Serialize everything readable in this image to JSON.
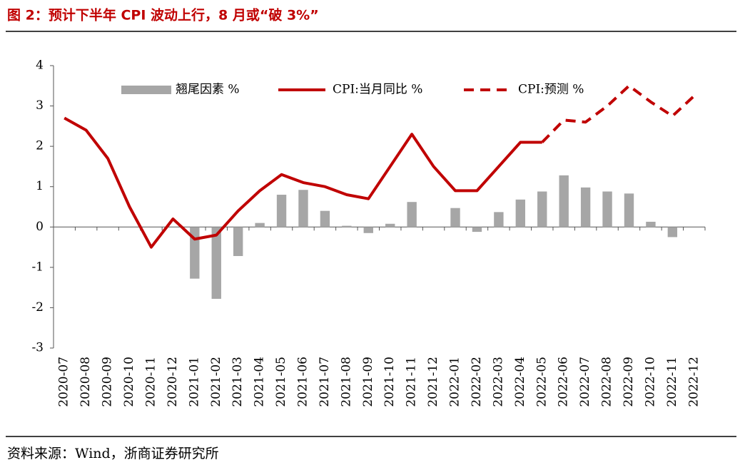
{
  "chart_data": {
    "type": "combo",
    "title": "图 2：预计下半年 CPI 波动上行，8 月或“破 3%”",
    "source": "资料来源：Wind，浙商证券研究所",
    "categories": [
      "2020-07",
      "2020-08",
      "2020-09",
      "2020-10",
      "2020-11",
      "2020-12",
      "2021-01",
      "2021-02",
      "2021-03",
      "2021-04",
      "2021-05",
      "2021-06",
      "2021-07",
      "2021-08",
      "2021-09",
      "2021-10",
      "2021-11",
      "2021-12",
      "2022-01",
      "2022-02",
      "2022-03",
      "2022-04",
      "2022-05",
      "2022-06",
      "2022-07",
      "2022-08",
      "2022-09",
      "2022-10",
      "2022-11",
      "2022-12"
    ],
    "series": [
      {
        "name": "翘尾因素 %",
        "type": "bar",
        "color": "#a6a6a6",
        "values": [
          null,
          null,
          null,
          null,
          null,
          null,
          -1.28,
          -1.78,
          -0.72,
          0.1,
          0.8,
          0.92,
          0.4,
          0.03,
          -0.15,
          0.08,
          0.62,
          null,
          0.47,
          -0.12,
          0.37,
          0.68,
          0.88,
          1.28,
          0.98,
          0.88,
          0.83,
          0.13,
          -0.25,
          null
        ]
      },
      {
        "name": "CPI:当月同比 %",
        "type": "line",
        "dashed": false,
        "color": "#c00000",
        "values": [
          2.7,
          2.4,
          1.7,
          0.5,
          -0.5,
          0.2,
          -0.3,
          -0.2,
          0.4,
          0.9,
          1.3,
          1.1,
          1.0,
          0.8,
          0.7,
          1.5,
          2.3,
          1.5,
          0.9,
          0.9,
          1.5,
          2.1,
          2.1,
          null,
          null,
          null,
          null,
          null,
          null,
          null
        ]
      },
      {
        "name": "CPI:预测 %",
        "type": "line",
        "dashed": true,
        "color": "#c00000",
        "values": [
          null,
          null,
          null,
          null,
          null,
          null,
          null,
          null,
          null,
          null,
          null,
          null,
          null,
          null,
          null,
          null,
          null,
          null,
          null,
          null,
          null,
          null,
          2.1,
          2.65,
          2.6,
          3.0,
          3.5,
          3.1,
          2.75,
          3.25
        ]
      }
    ],
    "ylim": [
      -3,
      4
    ],
    "yticks": [
      -3,
      -2,
      -1,
      0,
      1,
      2,
      3,
      4
    ]
  }
}
